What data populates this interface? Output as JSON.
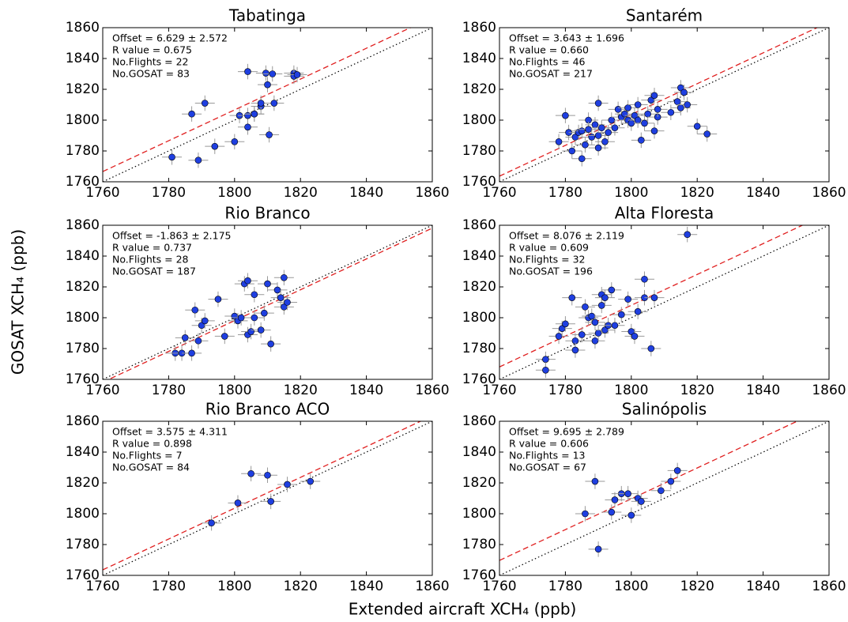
{
  "x_label": "Extended aircraft XCH₄ (ppb)",
  "y_label": "GOSAT XCH₄ (ppb)",
  "chart_data": [
    {
      "type": "scatter",
      "title": "Tabatinga",
      "annotations": [
        "Offset = 6.629 ± 2.572",
        "R value = 0.675",
        "No.Flights = 22",
        "No.GOSAT = 83"
      ],
      "fit_intercept": 6.629,
      "color": "#1f3fe0",
      "xerr": 3,
      "yerr": 5,
      "x": [
        1781,
        1787,
        1791,
        1789,
        1794,
        1800,
        1801.5,
        1804,
        1804,
        1804,
        1806,
        1806,
        1808,
        1808,
        1809.5,
        1810,
        1810.5,
        1812,
        1811.5,
        1818,
        1818,
        1819
      ],
      "values": [
        1776,
        1804,
        1811,
        1774,
        1783,
        1786,
        1803,
        1795.5,
        1803,
        1831.5,
        1804,
        1804,
        1809,
        1811,
        1830.5,
        1823,
        1790.5,
        1811,
        1830,
        1830.5,
        1828.5,
        1829.5
      ],
      "xlim": [
        1760,
        1860
      ],
      "ylim": [
        1760,
        1860
      ],
      "xticks": [
        1760,
        1780,
        1800,
        1820,
        1840,
        1860
      ],
      "yticks": [
        1760,
        1780,
        1800,
        1820,
        1840,
        1860
      ]
    },
    {
      "type": "scatter",
      "title": "Santarém",
      "annotations": [
        "Offset = 3.643 ± 1.696",
        "R value = 0.660",
        "No.Flights = 46",
        "No.GOSAT = 217"
      ],
      "fit_intercept": 3.643,
      "color": "#1f3fe0",
      "xerr": 3,
      "yerr": 5,
      "x": [
        1778,
        1780,
        1781,
        1782,
        1783,
        1784,
        1785,
        1785,
        1786,
        1787,
        1787,
        1788,
        1789,
        1790,
        1790,
        1790,
        1791,
        1792,
        1793,
        1794,
        1795,
        1796,
        1797,
        1798,
        1799,
        1799,
        1800,
        1801,
        1802,
        1802,
        1803,
        1804,
        1805,
        1806,
        1807,
        1807,
        1808,
        1808,
        1812,
        1814,
        1815,
        1815,
        1816,
        1817,
        1820,
        1823
      ],
      "values": [
        1786,
        1803,
        1792,
        1780,
        1789,
        1792,
        1775,
        1793,
        1784,
        1800,
        1794,
        1789,
        1797,
        1811,
        1782,
        1790,
        1795,
        1786,
        1792,
        1800,
        1795,
        1807,
        1802,
        1804,
        1808,
        1800,
        1798,
        1803,
        1810,
        1800,
        1787,
        1798,
        1804,
        1813,
        1816,
        1793,
        1802,
        1807,
        1805,
        1812,
        1821,
        1808,
        1818,
        1810,
        1796,
        1791
      ],
      "xlim": [
        1760,
        1860
      ],
      "ylim": [
        1760,
        1860
      ],
      "xticks": [
        1760,
        1780,
        1800,
        1820,
        1840,
        1860
      ],
      "yticks": [
        1760,
        1780,
        1800,
        1820,
        1840,
        1860
      ]
    },
    {
      "type": "scatter",
      "title": "Rio Branco",
      "annotations": [
        "Offset = -1.863 ± 2.175",
        "R value = 0.737",
        "No.Flights = 28",
        "No.GOSAT = 187"
      ],
      "fit_intercept": -1.863,
      "color": "#1f3fe0",
      "xerr": 3,
      "yerr": 5,
      "x": [
        1782,
        1784,
        1785,
        1787,
        1788,
        1789,
        1790,
        1791,
        1795,
        1797,
        1800,
        1801,
        1802,
        1803,
        1804,
        1804,
        1805,
        1806,
        1806,
        1808,
        1809,
        1810,
        1811,
        1813,
        1814,
        1815,
        1815,
        1816
      ],
      "values": [
        1777,
        1777,
        1787,
        1777,
        1805,
        1785,
        1795,
        1798,
        1812,
        1788,
        1801,
        1798,
        1800,
        1822,
        1789,
        1824,
        1791,
        1815,
        1800,
        1792,
        1803,
        1822,
        1783,
        1818,
        1813,
        1826,
        1807,
        1810
      ],
      "xlim": [
        1760,
        1860
      ],
      "ylim": [
        1760,
        1860
      ],
      "xticks": [
        1760,
        1780,
        1800,
        1820,
        1840,
        1860
      ],
      "yticks": [
        1760,
        1780,
        1800,
        1820,
        1840,
        1860
      ]
    },
    {
      "type": "scatter",
      "title": "Alta Floresta",
      "annotations": [
        "Offset = 8.076 ± 2.119",
        "R value = 0.609",
        "No.Flights = 32",
        "No.GOSAT = 196"
      ],
      "fit_intercept": 8.076,
      "color": "#1f3fe0",
      "xerr": 3,
      "yerr": 5,
      "x": [
        1774,
        1774,
        1778,
        1779,
        1780,
        1782,
        1783,
        1783,
        1785,
        1786,
        1787,
        1788,
        1789,
        1789,
        1790,
        1791,
        1791,
        1792,
        1792,
        1793,
        1794,
        1795,
        1797,
        1799,
        1800,
        1801,
        1802,
        1804,
        1804,
        1806,
        1807,
        1817
      ],
      "values": [
        1773,
        1766,
        1788,
        1793,
        1796,
        1813,
        1785,
        1779,
        1789,
        1807,
        1800,
        1801,
        1785,
        1797,
        1790,
        1815,
        1808,
        1813,
        1792,
        1795,
        1818,
        1795,
        1802,
        1812,
        1791,
        1788,
        1804,
        1813,
        1825,
        1780,
        1813,
        1854
      ],
      "xlim": [
        1760,
        1860
      ],
      "ylim": [
        1760,
        1860
      ],
      "xticks": [
        1760,
        1780,
        1800,
        1820,
        1840,
        1860
      ],
      "yticks": [
        1760,
        1780,
        1800,
        1820,
        1840,
        1860
      ]
    },
    {
      "type": "scatter",
      "title": "Rio Branco ACO",
      "annotations": [
        "Offset = 3.575 ± 4.311",
        "R value = 0.898",
        "No.Flights = 7",
        "No.GOSAT = 84"
      ],
      "fit_intercept": 3.575,
      "color": "#1f3fe0",
      "xerr": 3,
      "yerr": 5,
      "x": [
        1793,
        1801,
        1805,
        1810,
        1811,
        1816,
        1823
      ],
      "values": [
        1794,
        1807,
        1826,
        1825,
        1808,
        1819,
        1821
      ],
      "xlim": [
        1760,
        1860
      ],
      "ylim": [
        1760,
        1860
      ],
      "xticks": [
        1760,
        1780,
        1800,
        1820,
        1840,
        1860
      ],
      "yticks": [
        1760,
        1780,
        1800,
        1820,
        1840,
        1860
      ]
    },
    {
      "type": "scatter",
      "title": "Salinópolis",
      "annotations": [
        "Offset = 9.695 ± 2.789",
        "R value = 0.606",
        "No.Flights = 13",
        "No.GOSAT = 67"
      ],
      "fit_intercept": 9.695,
      "color": "#1f3fe0",
      "xerr": 3,
      "yerr": 5,
      "x": [
        1786,
        1789,
        1790,
        1794,
        1795,
        1797,
        1799,
        1800,
        1802,
        1803,
        1809,
        1812,
        1814
      ],
      "values": [
        1800,
        1821,
        1777,
        1801,
        1809,
        1813,
        1813,
        1799,
        1810,
        1808,
        1815,
        1821,
        1828
      ],
      "xlim": [
        1760,
        1860
      ],
      "ylim": [
        1760,
        1860
      ],
      "xticks": [
        1760,
        1780,
        1800,
        1820,
        1840,
        1860
      ],
      "yticks": [
        1760,
        1780,
        1800,
        1820,
        1840,
        1860
      ]
    }
  ]
}
